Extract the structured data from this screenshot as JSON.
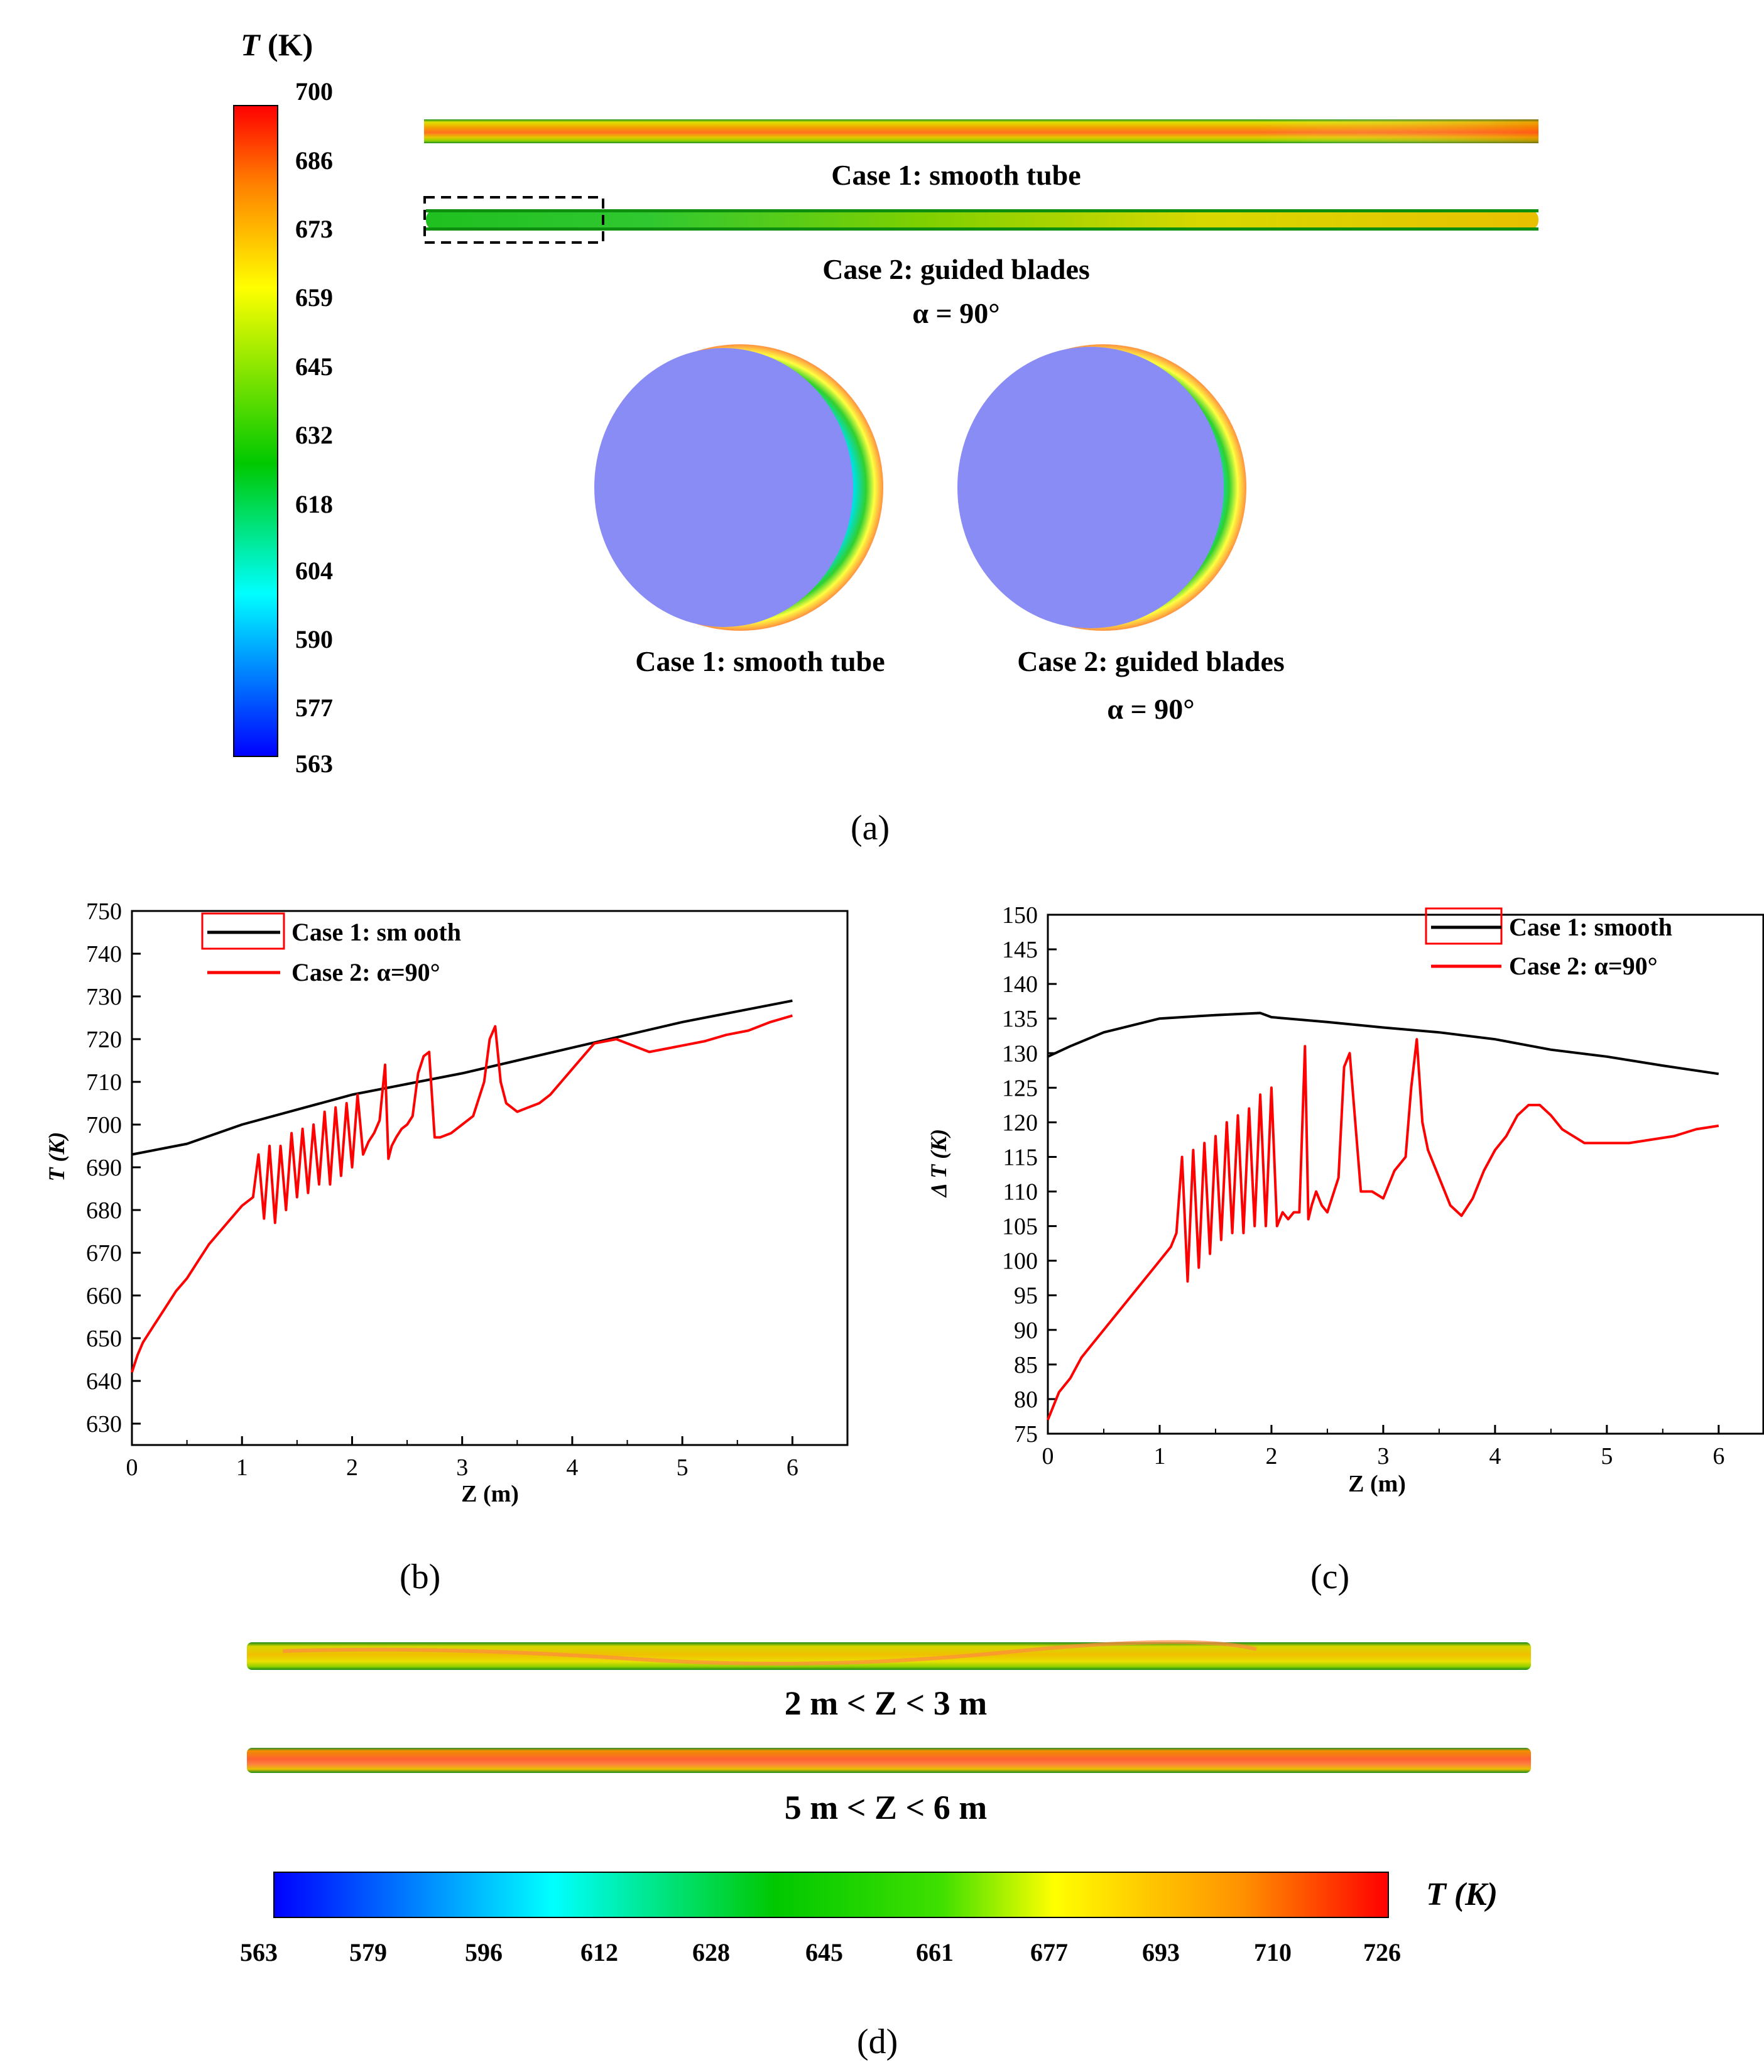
{
  "colors": {
    "case1": "#000000",
    "case2": "#ff0000",
    "cross_section_core": "#8a8cf6",
    "colormap": [
      "#0000ff",
      "#00ffff",
      "#00c800",
      "#ffff00",
      "#ff0000"
    ]
  },
  "panel_a": {
    "colorbar_title_var": "T",
    "colorbar_title_unit": "(K)",
    "colorbar_ticks": [
      "700",
      "686",
      "673",
      "659",
      "645",
      "632",
      "618",
      "604",
      "590",
      "577",
      "563"
    ],
    "tube1_label": "Case 1: smooth tube",
    "tube2_label": "Case 2: guided blades",
    "tube2_sub": "α = 90°",
    "cross1_label": "Case 1: smooth tube",
    "cross2_label": "Case 2: guided blades",
    "cross2_sub": "α = 90°",
    "caption": "(a)"
  },
  "panel_b": {
    "caption": "(b)",
    "legend": [
      "Case 1: sm ooth",
      "Case 2: α=90°"
    ],
    "ylabel": "T (K)",
    "xlabel": "Z (m)"
  },
  "panel_c": {
    "caption": "(c)",
    "legend": [
      "Case 1: smooth",
      "Case 2: α=90°"
    ],
    "ylabel": "Δ T (K)",
    "xlabel": "Z (m)"
  },
  "panel_d": {
    "tube1_label": "2 m < Z < 3 m",
    "tube2_label": "5 m < Z < 6 m",
    "colorbar_title": "T (K)",
    "colorbar_ticks": [
      "563",
      "579",
      "596",
      "612",
      "628",
      "645",
      "661",
      "677",
      "693",
      "710",
      "726"
    ],
    "caption": "(d)"
  },
  "chart_data": [
    {
      "type": "line",
      "panel": "b",
      "xlabel": "Z (m)",
      "ylabel": "T (K)",
      "xlim": [
        0,
        6.5
      ],
      "ylim": [
        625,
        750
      ],
      "xticks": [
        0,
        1,
        2,
        3,
        4,
        5,
        6
      ],
      "yticks": [
        630,
        640,
        650,
        660,
        670,
        680,
        690,
        700,
        710,
        720,
        730,
        740,
        750
      ],
      "legend_position": "top-left",
      "series": [
        {
          "name": "Case 1: sm ooth",
          "x": [
            0,
            0.5,
            1.0,
            1.5,
            2.0,
            2.5,
            3.0,
            3.5,
            4.0,
            4.5,
            5.0,
            5.5,
            6.0
          ],
          "y": [
            693,
            695.5,
            700,
            703.5,
            707,
            709.5,
            712,
            715,
            718,
            721,
            724,
            726.5,
            729
          ]
        },
        {
          "name": "Case 2: α=90°",
          "x": [
            0,
            0.05,
            0.1,
            0.2,
            0.3,
            0.4,
            0.5,
            0.6,
            0.7,
            0.8,
            0.9,
            1.0,
            1.1,
            1.15,
            1.2,
            1.25,
            1.3,
            1.35,
            1.4,
            1.45,
            1.5,
            1.55,
            1.6,
            1.65,
            1.7,
            1.75,
            1.8,
            1.85,
            1.9,
            1.95,
            2.0,
            2.05,
            2.1,
            2.15,
            2.2,
            2.25,
            2.3,
            2.33,
            2.36,
            2.4,
            2.45,
            2.5,
            2.55,
            2.6,
            2.65,
            2.7,
            2.75,
            2.8,
            2.9,
            3.0,
            3.1,
            3.2,
            3.25,
            3.3,
            3.35,
            3.4,
            3.5,
            3.6,
            3.7,
            3.8,
            3.9,
            4.0,
            4.1,
            4.2,
            4.3,
            4.4,
            4.5,
            4.6,
            4.7,
            4.8,
            4.9,
            5.0,
            5.2,
            5.4,
            5.6,
            5.8,
            6.0
          ],
          "y": [
            642,
            646,
            649,
            653,
            657,
            661,
            664,
            668,
            672,
            675,
            678,
            681,
            683,
            693,
            678,
            695,
            677,
            695,
            680,
            698,
            683,
            699,
            684,
            700,
            686,
            703,
            686,
            704,
            688,
            705,
            690,
            707,
            693,
            696,
            698,
            701,
            714,
            692,
            695,
            697,
            699,
            700,
            702,
            712,
            716,
            717,
            697,
            697,
            698,
            700,
            702,
            710,
            720,
            723,
            710,
            705,
            703,
            704,
            705,
            707,
            710,
            713,
            716,
            719,
            719.5,
            720,
            719,
            718,
            717,
            717.5,
            718,
            718.5,
            719.5,
            721,
            722,
            724,
            725.5
          ]
        }
      ]
    },
    {
      "type": "line",
      "panel": "c",
      "xlabel": "Z (m)",
      "ylabel": "Δ T (K)",
      "xlim": [
        0,
        6.4
      ],
      "ylim": [
        75,
        150
      ],
      "xticks": [
        0,
        1,
        2,
        3,
        4,
        5,
        6
      ],
      "yticks": [
        75,
        80,
        85,
        90,
        95,
        100,
        105,
        110,
        115,
        120,
        125,
        130,
        135,
        140,
        145,
        150
      ],
      "legend_position": "top-right",
      "series": [
        {
          "name": "Case 1: smooth",
          "x": [
            0,
            0.2,
            0.5,
            1.0,
            1.5,
            1.9,
            2.0,
            2.5,
            3.0,
            3.5,
            4.0,
            4.5,
            5.0,
            5.5,
            6.0
          ],
          "y": [
            129.5,
            131,
            133,
            135,
            135.5,
            135.8,
            135.2,
            134.5,
            133.7,
            133,
            132,
            130.5,
            129.5,
            128.2,
            127
          ]
        },
        {
          "name": "Case 2: α=90°",
          "x": [
            0,
            0.05,
            0.1,
            0.2,
            0.3,
            0.4,
            0.5,
            0.6,
            0.7,
            0.8,
            0.9,
            1.0,
            1.1,
            1.15,
            1.2,
            1.25,
            1.3,
            1.35,
            1.4,
            1.45,
            1.5,
            1.55,
            1.6,
            1.65,
            1.7,
            1.75,
            1.8,
            1.85,
            1.9,
            1.95,
            2.0,
            2.05,
            2.1,
            2.15,
            2.2,
            2.25,
            2.3,
            2.33,
            2.36,
            2.4,
            2.45,
            2.5,
            2.6,
            2.65,
            2.7,
            2.75,
            2.8,
            2.9,
            3.0,
            3.1,
            3.2,
            3.25,
            3.3,
            3.35,
            3.4,
            3.5,
            3.6,
            3.7,
            3.8,
            3.9,
            4.0,
            4.1,
            4.2,
            4.3,
            4.4,
            4.5,
            4.6,
            4.8,
            5.0,
            5.2,
            5.4,
            5.6,
            5.8,
            6.0
          ],
          "y": [
            77,
            79,
            81,
            83,
            86,
            88,
            90,
            92,
            94,
            96,
            98,
            100,
            102,
            104,
            115,
            97,
            116,
            99,
            117,
            101,
            118,
            103,
            120,
            104,
            121,
            104,
            122,
            105,
            124,
            105,
            125,
            105,
            107,
            106,
            107,
            107,
            131,
            106,
            108,
            110,
            108,
            107,
            112,
            128,
            130,
            120,
            110,
            110,
            109,
            113,
            115,
            125,
            132,
            120,
            116,
            112,
            108,
            106.5,
            109,
            113,
            116,
            118,
            121,
            122.5,
            122.5,
            121,
            119,
            117,
            117,
            117,
            117.5,
            118,
            119,
            119.5
          ]
        }
      ]
    }
  ]
}
